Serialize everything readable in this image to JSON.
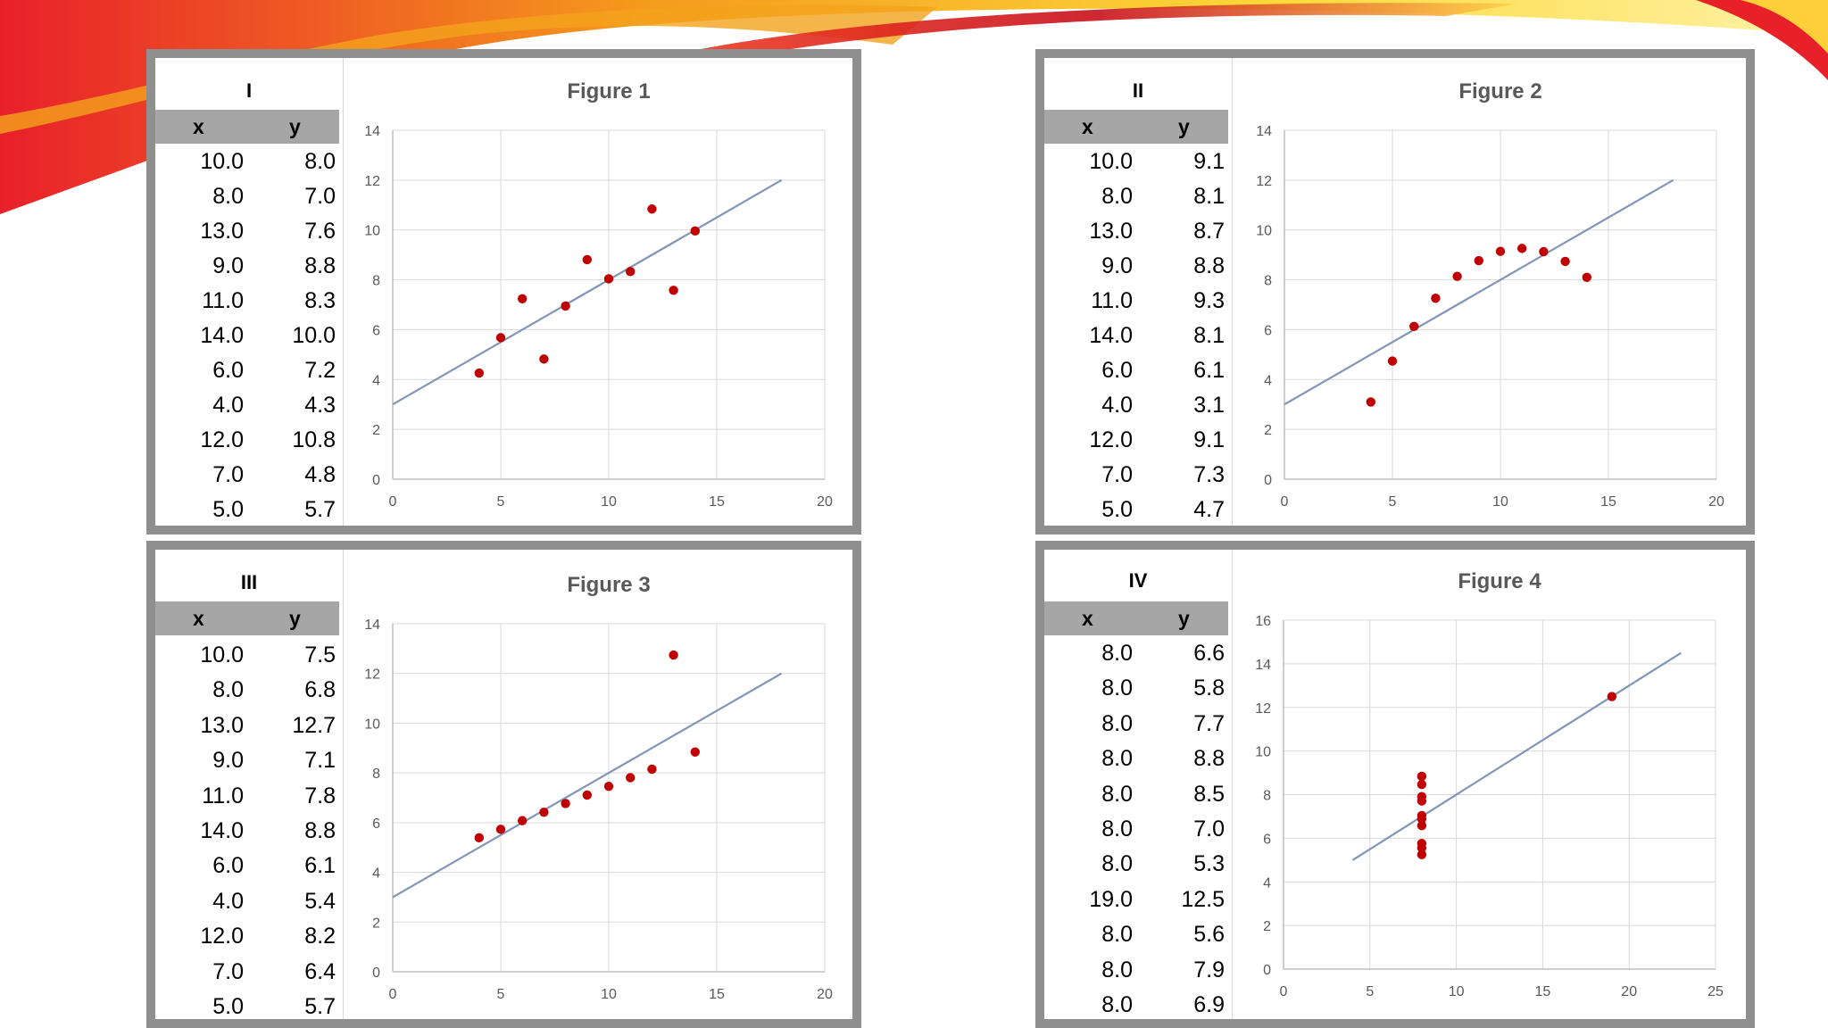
{
  "colors": {
    "point": "#c00000",
    "trend": "#7f96b8",
    "grid": "#d9d9d9",
    "frame": "#8f8f8f",
    "header": "#a6a6a6"
  },
  "panels": [
    {
      "label": "I",
      "col_x": "x",
      "col_y": "y",
      "rows": [
        [
          "10.0",
          "8.0"
        ],
        [
          "8.0",
          "7.0"
        ],
        [
          "13.0",
          "7.6"
        ],
        [
          "9.0",
          "8.8"
        ],
        [
          "11.0",
          "8.3"
        ],
        [
          "14.0",
          "10.0"
        ],
        [
          "6.0",
          "7.2"
        ],
        [
          "4.0",
          "4.3"
        ],
        [
          "12.0",
          "10.8"
        ],
        [
          "7.0",
          "4.8"
        ],
        [
          "5.0",
          "5.7"
        ]
      ]
    },
    {
      "label": "II",
      "col_x": "x",
      "col_y": "y",
      "rows": [
        [
          "10.0",
          "9.1"
        ],
        [
          "8.0",
          "8.1"
        ],
        [
          "13.0",
          "8.7"
        ],
        [
          "9.0",
          "8.8"
        ],
        [
          "11.0",
          "9.3"
        ],
        [
          "14.0",
          "8.1"
        ],
        [
          "6.0",
          "6.1"
        ],
        [
          "4.0",
          "3.1"
        ],
        [
          "12.0",
          "9.1"
        ],
        [
          "7.0",
          "7.3"
        ],
        [
          "5.0",
          "4.7"
        ]
      ]
    },
    {
      "label": "III",
      "col_x": "x",
      "col_y": "y",
      "rows": [
        [
          "10.0",
          "7.5"
        ],
        [
          "8.0",
          "6.8"
        ],
        [
          "13.0",
          "12.7"
        ],
        [
          "9.0",
          "7.1"
        ],
        [
          "11.0",
          "7.8"
        ],
        [
          "14.0",
          "8.8"
        ],
        [
          "6.0",
          "6.1"
        ],
        [
          "4.0",
          "5.4"
        ],
        [
          "12.0",
          "8.2"
        ],
        [
          "7.0",
          "6.4"
        ],
        [
          "5.0",
          "5.7"
        ]
      ]
    },
    {
      "label": "IV",
      "col_x": "x",
      "col_y": "y",
      "rows": [
        [
          "8.0",
          "6.6"
        ],
        [
          "8.0",
          "5.8"
        ],
        [
          "8.0",
          "7.7"
        ],
        [
          "8.0",
          "8.8"
        ],
        [
          "8.0",
          "8.5"
        ],
        [
          "8.0",
          "7.0"
        ],
        [
          "8.0",
          "5.3"
        ],
        [
          "19.0",
          "12.5"
        ],
        [
          "8.0",
          "5.6"
        ],
        [
          "8.0",
          "7.9"
        ],
        [
          "8.0",
          "6.9"
        ]
      ]
    }
  ],
  "chart_data": [
    {
      "type": "scatter",
      "title": "Figure 1",
      "xlim": [
        0,
        20
      ],
      "ylim": [
        0,
        14
      ],
      "xticks": [
        0,
        5,
        10,
        15,
        20
      ],
      "yticks": [
        0,
        2,
        4,
        6,
        8,
        10,
        12,
        14
      ],
      "grid": true,
      "x": [
        10,
        8,
        13,
        9,
        11,
        14,
        6,
        4,
        12,
        7,
        5
      ],
      "y": [
        8.04,
        6.95,
        7.58,
        8.81,
        8.33,
        9.96,
        7.24,
        4.26,
        10.84,
        4.82,
        5.68
      ],
      "trendline": {
        "slope": 0.5,
        "intercept": 3.0,
        "x_range": [
          0,
          18
        ]
      }
    },
    {
      "type": "scatter",
      "title": "Figure 2",
      "xlim": [
        0,
        20
      ],
      "ylim": [
        0,
        14
      ],
      "xticks": [
        0,
        5,
        10,
        15,
        20
      ],
      "yticks": [
        0,
        2,
        4,
        6,
        8,
        10,
        12,
        14
      ],
      "grid": true,
      "x": [
        10,
        8,
        13,
        9,
        11,
        14,
        6,
        4,
        12,
        7,
        5
      ],
      "y": [
        9.14,
        8.14,
        8.74,
        8.77,
        9.26,
        8.1,
        6.13,
        3.1,
        9.13,
        7.26,
        4.74
      ],
      "trendline": {
        "slope": 0.5,
        "intercept": 3.0,
        "x_range": [
          0,
          18
        ]
      }
    },
    {
      "type": "scatter",
      "title": "Figure 3",
      "xlim": [
        0,
        20
      ],
      "ylim": [
        0,
        14
      ],
      "xticks": [
        0,
        5,
        10,
        15,
        20
      ],
      "yticks": [
        0,
        2,
        4,
        6,
        8,
        10,
        12,
        14
      ],
      "grid": true,
      "x": [
        10,
        8,
        13,
        9,
        11,
        14,
        6,
        4,
        12,
        7,
        5
      ],
      "y": [
        7.46,
        6.77,
        12.74,
        7.11,
        7.81,
        8.84,
        6.08,
        5.39,
        8.15,
        6.42,
        5.73
      ],
      "trendline": {
        "slope": 0.5,
        "intercept": 3.0,
        "x_range": [
          0,
          18
        ]
      }
    },
    {
      "type": "scatter",
      "title": "Figure 4",
      "xlim": [
        0,
        25
      ],
      "ylim": [
        0,
        16
      ],
      "xticks": [
        0,
        5,
        10,
        15,
        20,
        25
      ],
      "yticks": [
        0,
        2,
        4,
        6,
        8,
        10,
        12,
        14,
        16
      ],
      "grid": true,
      "x": [
        8,
        8,
        8,
        8,
        8,
        8,
        8,
        19,
        8,
        8,
        8
      ],
      "y": [
        6.58,
        5.76,
        7.71,
        8.84,
        8.47,
        7.04,
        5.25,
        12.5,
        5.56,
        7.91,
        6.89
      ],
      "trendline": {
        "slope": 0.5,
        "intercept": 3.0,
        "x_range": [
          4,
          23
        ]
      }
    }
  ]
}
